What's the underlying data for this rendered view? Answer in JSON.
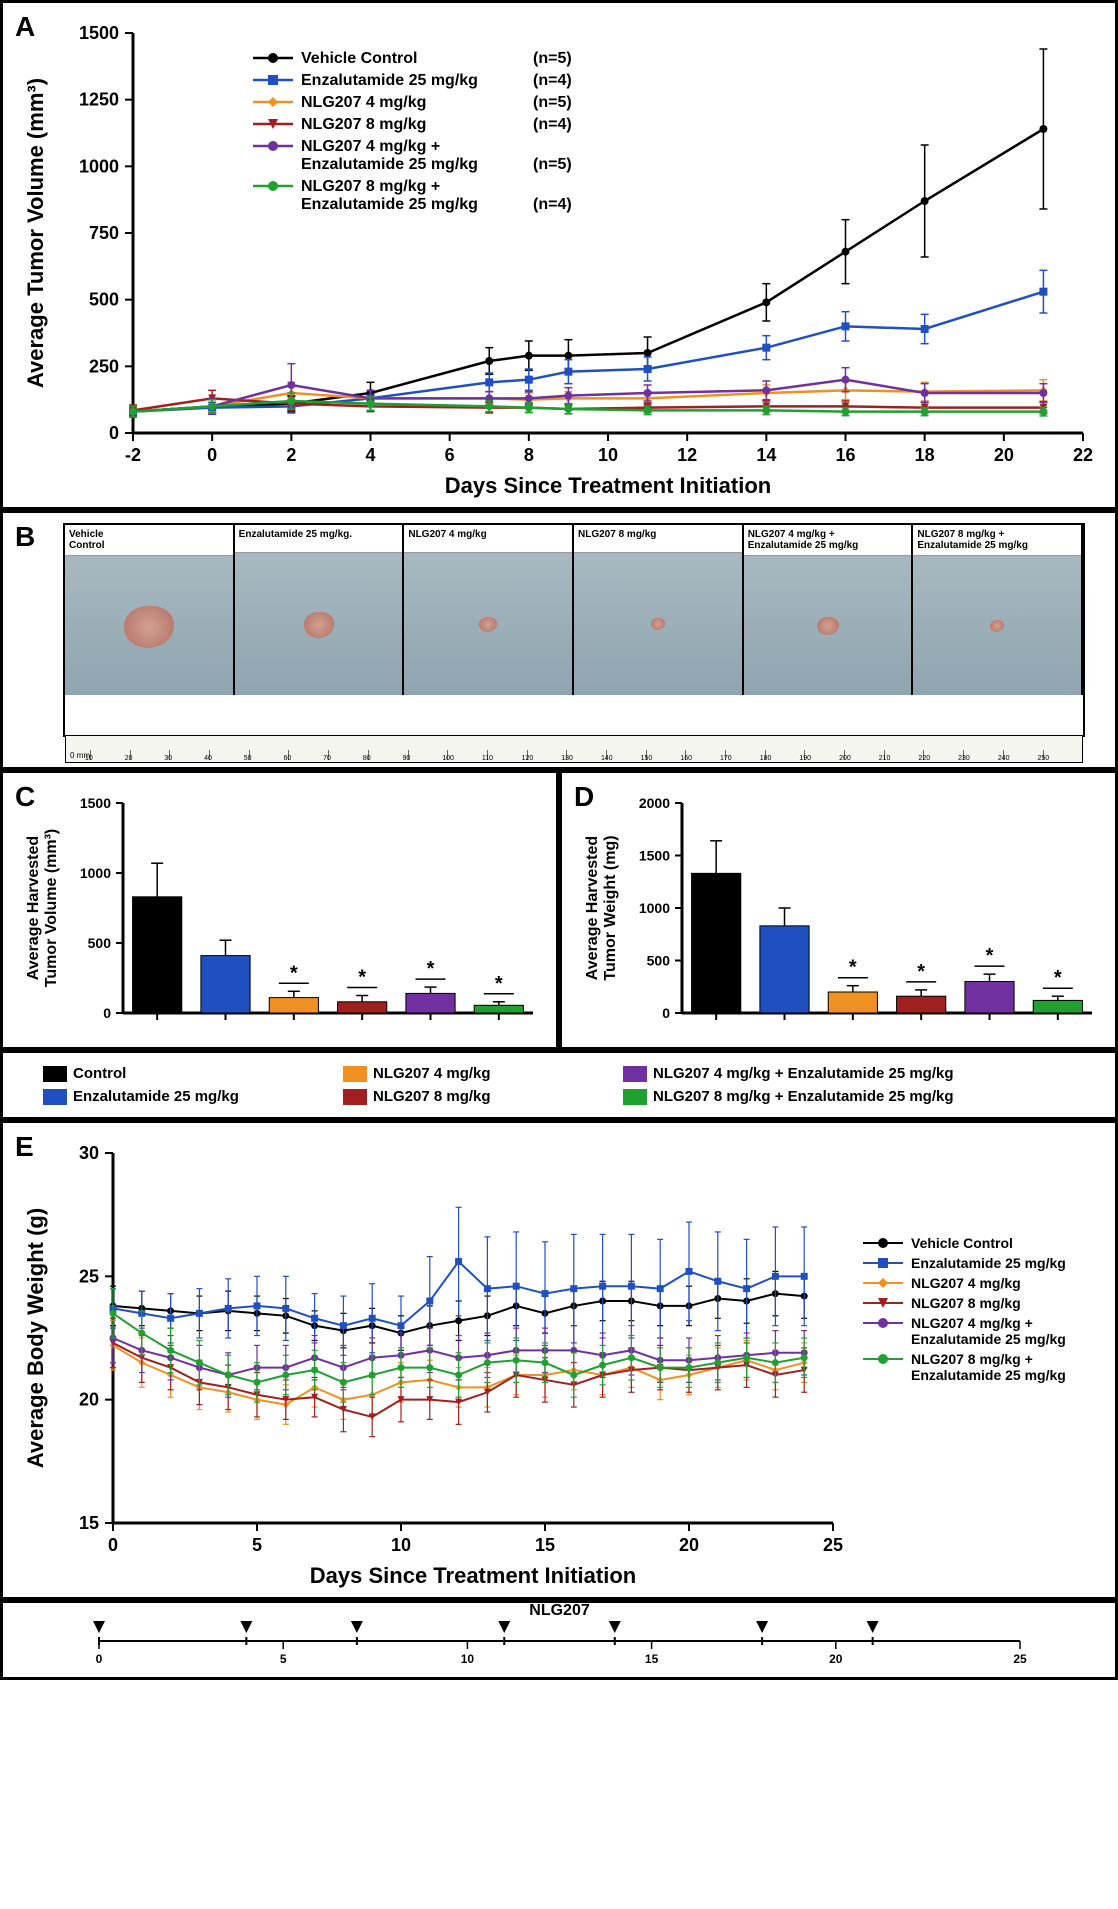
{
  "groups": [
    {
      "id": "vehicle",
      "label": "Vehicle Control",
      "n": 5,
      "color": "#000000",
      "marker": "circle"
    },
    {
      "id": "enza",
      "label": "Enzalutamide 25 mg/kg",
      "n": 4,
      "color": "#2050c0",
      "marker": "square"
    },
    {
      "id": "nlg4",
      "label": "NLG207 4 mg/kg",
      "n": 5,
      "color": "#f09020",
      "marker": "diamond"
    },
    {
      "id": "nlg8",
      "label": "NLG207 8 mg/kg",
      "n": 4,
      "color": "#a02020",
      "marker": "tri"
    },
    {
      "id": "nlg4e",
      "label": "NLG207 4 mg/kg +",
      "label2": "Enzalutamide 25 mg/kg",
      "n": 5,
      "color": "#7030a0",
      "marker": "circle"
    },
    {
      "id": "nlg8e",
      "label": "NLG207 8 mg/kg +",
      "label2": "Enzalutamide 25 mg/kg",
      "n": 4,
      "color": "#20a030",
      "marker": "circle"
    }
  ],
  "panelA": {
    "title_y": "Average Tumor Volume (mm³)",
    "title_x": "Days Since Treatment Initiation",
    "xlim": [
      -2,
      22
    ],
    "xticks": [
      -2,
      0,
      2,
      4,
      6,
      8,
      10,
      12,
      14,
      16,
      18,
      20,
      22
    ],
    "ylim": [
      0,
      1500
    ],
    "yticks": [
      0,
      250,
      500,
      750,
      1000,
      1250,
      1500
    ],
    "series": {
      "vehicle": {
        "x": [
          -2,
          0,
          2,
          4,
          7,
          8,
          9,
          11,
          14,
          16,
          18,
          21
        ],
        "y": [
          80,
          100,
          110,
          150,
          270,
          290,
          290,
          300,
          490,
          680,
          870,
          1140
        ],
        "err": [
          20,
          25,
          30,
          40,
          50,
          55,
          60,
          60,
          70,
          120,
          210,
          300
        ]
      },
      "enza": {
        "x": [
          -2,
          0,
          2,
          4,
          7,
          8,
          9,
          11,
          14,
          16,
          18,
          21
        ],
        "y": [
          80,
          95,
          100,
          130,
          190,
          200,
          230,
          240,
          320,
          400,
          390,
          530
        ],
        "err": [
          20,
          20,
          25,
          30,
          35,
          40,
          45,
          45,
          45,
          55,
          55,
          80
        ]
      },
      "nlg4": {
        "x": [
          -2,
          0,
          2,
          4,
          7,
          8,
          9,
          11,
          14,
          16,
          18,
          21
        ],
        "y": [
          80,
          100,
          150,
          130,
          130,
          125,
          130,
          130,
          150,
          160,
          155,
          160
        ],
        "err": [
          15,
          25,
          40,
          30,
          25,
          25,
          25,
          25,
          30,
          35,
          35,
          40
        ]
      },
      "nlg8": {
        "x": [
          -2,
          0,
          2,
          4,
          7,
          8,
          9,
          11,
          14,
          16,
          18,
          21
        ],
        "y": [
          85,
          130,
          110,
          100,
          95,
          95,
          90,
          95,
          100,
          100,
          95,
          95
        ],
        "err": [
          20,
          30,
          25,
          20,
          20,
          18,
          18,
          18,
          20,
          20,
          20,
          22
        ]
      },
      "nlg4e": {
        "x": [
          -2,
          0,
          2,
          4,
          7,
          8,
          9,
          11,
          14,
          16,
          18,
          21
        ],
        "y": [
          80,
          100,
          180,
          130,
          130,
          130,
          140,
          150,
          160,
          200,
          150,
          150
        ],
        "err": [
          20,
          30,
          80,
          30,
          25,
          25,
          30,
          30,
          35,
          45,
          35,
          35
        ]
      },
      "nlg8e": {
        "x": [
          -2,
          0,
          2,
          4,
          7,
          8,
          9,
          11,
          14,
          16,
          18,
          21
        ],
        "y": [
          80,
          100,
          120,
          110,
          100,
          95,
          90,
          85,
          85,
          80,
          80,
          80
        ],
        "err": [
          20,
          25,
          30,
          25,
          20,
          18,
          18,
          16,
          16,
          15,
          15,
          16
        ]
      }
    }
  },
  "panelB": {
    "labels": [
      "Vehicle\nControl",
      "Enzalutamide 25 mg/kg.",
      "NLG207 4 mg/kg",
      "NLG207 8 mg/kg",
      "NLG207 4 mg/kg +\nEnzalutamide 25 mg/kg",
      "NLG207 8 mg/kg +\nEnzalutamide 25 mg/kg"
    ],
    "sizes": [
      50,
      30,
      18,
      14,
      22,
      14
    ],
    "ruler_ticks": [
      0,
      10,
      20,
      30,
      40,
      50,
      60,
      70,
      80,
      90,
      100,
      110,
      120,
      130,
      140,
      150,
      160,
      170,
      180,
      190,
      200,
      210,
      220,
      230,
      240,
      250
    ]
  },
  "panelC": {
    "title_y": "Average Harvested\nTumor Volume (mm³)",
    "ylim": [
      0,
      1500
    ],
    "yticks": [
      0,
      500,
      1000,
      1500
    ],
    "values": [
      830,
      410,
      110,
      80,
      140,
      55
    ],
    "err": [
      240,
      110,
      45,
      45,
      45,
      25
    ],
    "sig": [
      false,
      false,
      true,
      true,
      true,
      true
    ]
  },
  "panelD": {
    "title_y": "Average Harvested\nTumor Weight (mg)",
    "ylim": [
      0,
      2000
    ],
    "yticks": [
      0,
      500,
      1000,
      1500,
      2000
    ],
    "values": [
      1330,
      830,
      200,
      160,
      300,
      120
    ],
    "err": [
      310,
      170,
      60,
      60,
      70,
      40
    ],
    "sig": [
      false,
      false,
      true,
      true,
      true,
      true
    ]
  },
  "legendCD": [
    {
      "label": "Control",
      "color": "#000000"
    },
    {
      "label": "Enzalutamide 25 mg/kg",
      "color": "#2050c0"
    },
    {
      "label": "NLG207 4 mg/kg",
      "color": "#f09020"
    },
    {
      "label": "NLG207 8 mg/kg",
      "color": "#a02020"
    },
    {
      "label": "NLG207 4 mg/kg + Enzalutamide 25 mg/kg",
      "color": "#7030a0"
    },
    {
      "label": "NLG207 8 mg/kg + Enzalutamide 25 mg/kg",
      "color": "#20a030"
    }
  ],
  "panelE": {
    "title_y": "Average Body Weight (g)",
    "title_x": "Days Since Treatment Initiation",
    "xlim": [
      0,
      25
    ],
    "xticks": [
      0,
      5,
      10,
      15,
      20,
      25
    ],
    "ylim": [
      15,
      30
    ],
    "yticks": [
      15,
      20,
      25,
      30
    ],
    "series": {
      "vehicle": {
        "x": [
          0,
          1,
          2,
          3,
          4,
          5,
          6,
          7,
          8,
          9,
          10,
          11,
          12,
          13,
          14,
          15,
          16,
          17,
          18,
          19,
          20,
          21,
          22,
          23,
          24
        ],
        "y": [
          23.8,
          23.7,
          23.6,
          23.5,
          23.6,
          23.5,
          23.4,
          23.0,
          22.8,
          23.0,
          22.7,
          23.0,
          23.2,
          23.4,
          23.8,
          23.5,
          23.8,
          24.0,
          24.0,
          23.8,
          23.8,
          24.1,
          24.0,
          24.3,
          24.2
        ],
        "err": [
          0.8,
          0.7,
          0.7,
          0.7,
          0.8,
          0.7,
          0.7,
          0.6,
          0.7,
          0.7,
          0.7,
          0.8,
          0.8,
          0.8,
          0.8,
          0.8,
          0.8,
          0.8,
          0.8,
          0.8,
          0.8,
          0.8,
          0.9,
          0.9,
          0.9
        ]
      },
      "enza": {
        "x": [
          0,
          1,
          2,
          3,
          4,
          5,
          6,
          7,
          8,
          9,
          10,
          11,
          12,
          13,
          14,
          15,
          16,
          17,
          18,
          19,
          20,
          21,
          22,
          23,
          24
        ],
        "y": [
          23.7,
          23.5,
          23.3,
          23.5,
          23.7,
          23.8,
          23.7,
          23.3,
          23.0,
          23.3,
          23.0,
          24.0,
          25.6,
          24.5,
          24.6,
          24.3,
          24.5,
          24.6,
          24.6,
          24.5,
          25.2,
          24.8,
          24.5,
          25.0,
          25.0
        ],
        "err": [
          0.8,
          0.9,
          1.0,
          1.0,
          1.2,
          1.2,
          1.3,
          1.0,
          1.2,
          1.4,
          1.2,
          1.8,
          2.2,
          2.1,
          2.2,
          2.1,
          2.2,
          2.1,
          2.1,
          2.0,
          2.0,
          2.0,
          2.0,
          2.0,
          2.0
        ]
      },
      "nlg4": {
        "x": [
          0,
          1,
          2,
          3,
          4,
          5,
          6,
          7,
          8,
          9,
          10,
          11,
          12,
          13,
          14,
          15,
          16,
          17,
          18,
          19,
          20,
          21,
          22,
          23,
          24
        ],
        "y": [
          22.2,
          21.5,
          21.0,
          20.5,
          20.3,
          20.0,
          19.8,
          20.5,
          20.0,
          20.2,
          20.7,
          20.8,
          20.5,
          20.5,
          21.0,
          21.0,
          21.2,
          21.0,
          21.3,
          20.8,
          21.0,
          21.3,
          21.6,
          21.2,
          21.5
        ],
        "err": [
          1.0,
          1.0,
          0.9,
          0.9,
          0.8,
          0.8,
          0.8,
          0.8,
          0.8,
          0.8,
          0.8,
          0.8,
          0.8,
          0.8,
          0.8,
          0.9,
          0.8,
          0.8,
          0.8,
          0.8,
          0.8,
          0.8,
          0.8,
          0.8,
          0.8
        ]
      },
      "nlg8": {
        "x": [
          0,
          1,
          2,
          3,
          4,
          5,
          6,
          7,
          8,
          9,
          10,
          11,
          12,
          13,
          14,
          15,
          16,
          17,
          18,
          19,
          20,
          21,
          22,
          23,
          24
        ],
        "y": [
          22.3,
          21.7,
          21.3,
          20.7,
          20.5,
          20.2,
          20.0,
          20.1,
          19.6,
          19.3,
          20.0,
          20.0,
          19.9,
          20.3,
          21.0,
          20.8,
          20.6,
          21.0,
          21.2,
          21.3,
          21.2,
          21.3,
          21.4,
          21.0,
          21.2
        ],
        "err": [
          1.0,
          1.0,
          0.9,
          0.9,
          0.9,
          0.9,
          0.8,
          0.8,
          0.9,
          0.8,
          0.9,
          0.8,
          0.9,
          0.8,
          0.9,
          0.9,
          0.9,
          0.9,
          0.9,
          0.9,
          0.9,
          0.9,
          0.9,
          0.9,
          0.9
        ]
      },
      "nlg4e": {
        "x": [
          0,
          1,
          2,
          3,
          4,
          5,
          6,
          7,
          8,
          9,
          10,
          11,
          12,
          13,
          14,
          15,
          16,
          17,
          18,
          19,
          20,
          21,
          22,
          23,
          24
        ],
        "y": [
          22.5,
          22.0,
          21.7,
          21.3,
          21.0,
          21.3,
          21.3,
          21.7,
          21.3,
          21.7,
          21.8,
          22.0,
          21.7,
          21.8,
          22.0,
          22.0,
          22.0,
          21.8,
          22.0,
          21.6,
          21.6,
          21.7,
          21.8,
          21.9,
          21.9
        ],
        "err": [
          1.0,
          0.9,
          0.9,
          0.9,
          0.9,
          0.9,
          0.9,
          0.9,
          0.9,
          0.8,
          0.9,
          0.9,
          0.9,
          0.9,
          0.9,
          0.9,
          1.0,
          0.9,
          1.0,
          0.9,
          0.9,
          0.9,
          0.9,
          0.9,
          0.9
        ]
      },
      "nlg8e": {
        "x": [
          0,
          1,
          2,
          3,
          4,
          5,
          6,
          7,
          8,
          9,
          10,
          11,
          12,
          13,
          14,
          15,
          16,
          17,
          18,
          19,
          20,
          21,
          22,
          23,
          24
        ],
        "y": [
          23.5,
          22.7,
          22.0,
          21.5,
          21.0,
          20.7,
          21.0,
          21.2,
          20.7,
          21.0,
          21.3,
          21.3,
          21.0,
          21.5,
          21.6,
          21.5,
          21.0,
          21.4,
          21.7,
          21.3,
          21.3,
          21.5,
          21.7,
          21.5,
          21.7
        ],
        "err": [
          1.0,
          0.9,
          0.9,
          0.9,
          0.8,
          0.8,
          0.8,
          0.8,
          0.8,
          0.8,
          0.8,
          0.8,
          0.9,
          0.8,
          0.9,
          0.8,
          0.9,
          0.8,
          0.9,
          0.8,
          0.8,
          0.8,
          0.8,
          0.8,
          0.8
        ]
      }
    }
  }
}
